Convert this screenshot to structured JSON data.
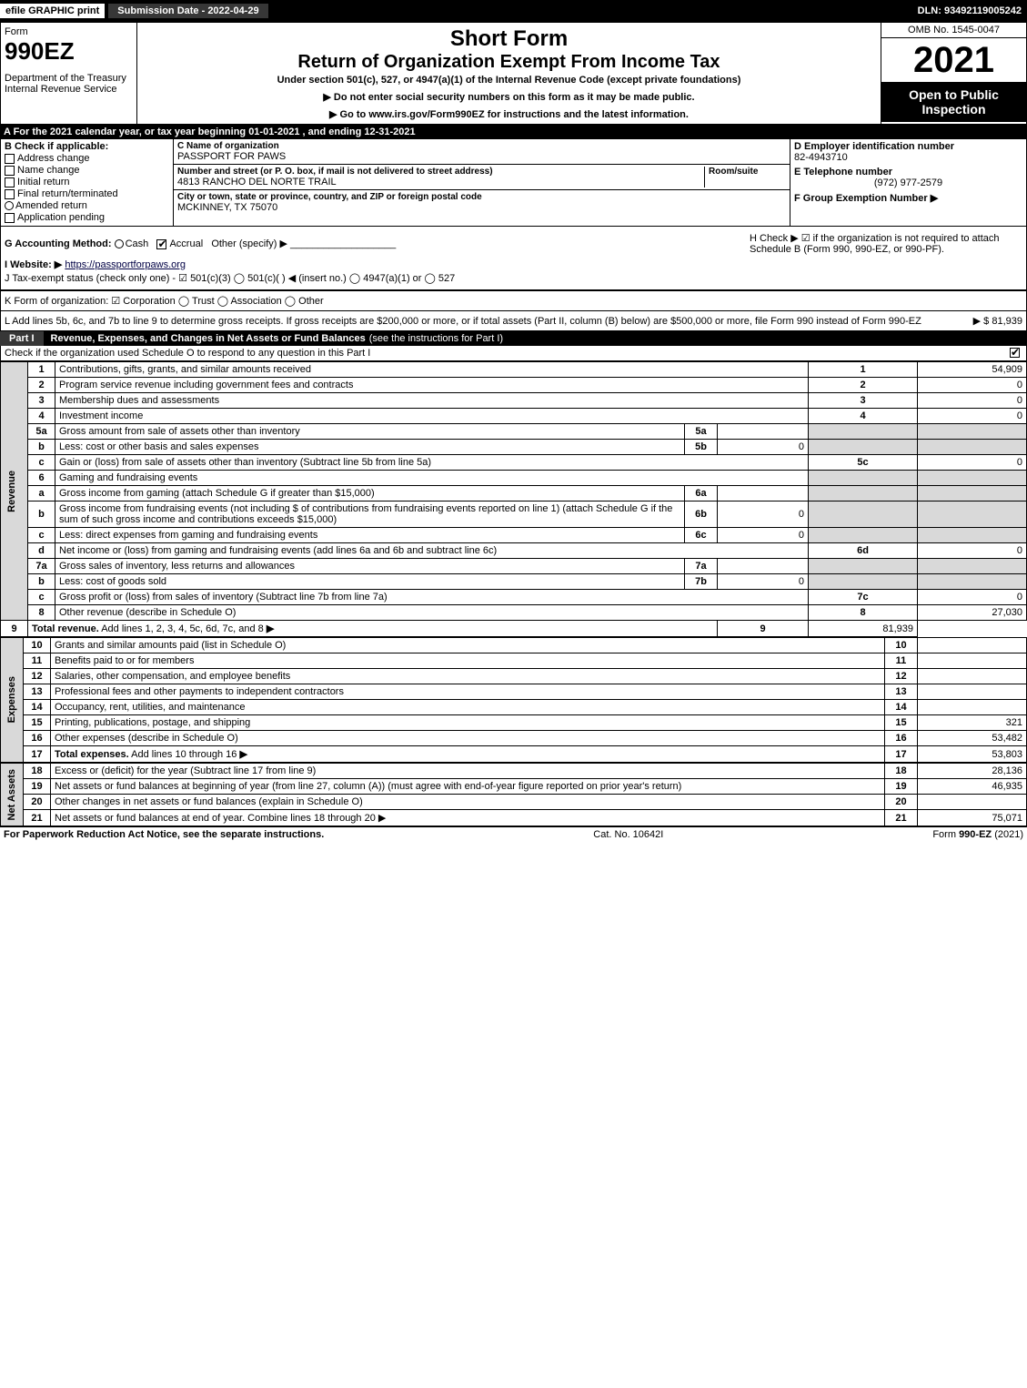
{
  "topbar": {
    "efile": "efile GRAPHIC print",
    "submission_label": "Submission Date - 2022-04-29",
    "dln": "DLN: 93492119005242"
  },
  "header": {
    "form_word": "Form",
    "form_num": "990EZ",
    "dept": "Department of the Treasury\nInternal Revenue Service",
    "short": "Short Form",
    "title": "Return of Organization Exempt From Income Tax",
    "under": "Under section 501(c), 527, or 4947(a)(1) of the Internal Revenue Code (except private foundations)",
    "note1": "▶ Do not enter social security numbers on this form as it may be made public.",
    "note2": "▶ Go to www.irs.gov/Form990EZ for instructions and the latest information.",
    "omb": "OMB No. 1545-0047",
    "year": "2021",
    "open": "Open to Public Inspection"
  },
  "line_a": "A  For the 2021 calendar year, or tax year beginning 01-01-2021 , and ending 12-31-2021",
  "section_b": {
    "label": "B  Check if applicable:",
    "items": [
      "Address change",
      "Name change",
      "Initial return",
      "Final return/terminated",
      "Amended return",
      "Application pending"
    ]
  },
  "section_c": {
    "name_label": "C Name of organization",
    "name": "PASSPORT FOR PAWS",
    "addr_label": "Number and street (or P. O. box, if mail is not delivered to street address)",
    "room_label": "Room/suite",
    "addr": "4813 RANCHO DEL NORTE TRAIL",
    "city_label": "City or town, state or province, country, and ZIP or foreign postal code",
    "city": "MCKINNEY, TX  75070"
  },
  "section_d": {
    "ein_label": "D Employer identification number",
    "ein": "82-4943710",
    "phone_label": "E Telephone number",
    "phone": "(972) 977-2579",
    "group_label": "F Group Exemption Number  ▶"
  },
  "g": {
    "label": "G Accounting Method:",
    "cash": "Cash",
    "accrual": "Accrual",
    "other": "Other (specify) ▶"
  },
  "h": {
    "text": "H  Check ▶ ☑ if the organization is not required to attach Schedule B (Form 990, 990-EZ, or 990-PF)."
  },
  "i": {
    "label": "I Website: ▶",
    "url": "https://passportforpaws.org"
  },
  "j": {
    "text": "J Tax-exempt status (check only one) - ☑ 501(c)(3)  ◯ 501(c)(   ) ◀ (insert no.)  ◯ 4947(a)(1) or  ◯ 527"
  },
  "k": {
    "text": "K Form of organization:  ☑ Corporation  ◯ Trust  ◯ Association  ◯ Other"
  },
  "l": {
    "text": "L Add lines 5b, 6c, and 7b to line 9 to determine gross receipts. If gross receipts are $200,000 or more, or if total assets (Part II, column (B) below) are $500,000 or more, file Form 990 instead of Form 990-EZ",
    "amount": "▶ $ 81,939"
  },
  "part1": {
    "label": "Part I",
    "title": "Revenue, Expenses, and Changes in Net Assets or Fund Balances",
    "extra": "(see the instructions for Part I)",
    "check_note": "Check if the organization used Schedule O to respond to any question in this Part I"
  },
  "side_labels": {
    "revenue": "Revenue",
    "expenses": "Expenses",
    "net": "Net Assets"
  },
  "rows": [
    {
      "n": "1",
      "desc": "Contributions, gifts, grants, and similar amounts received",
      "box": "1",
      "amt": "54,909"
    },
    {
      "n": "2",
      "desc": "Program service revenue including government fees and contracts",
      "box": "2",
      "amt": "0"
    },
    {
      "n": "3",
      "desc": "Membership dues and assessments",
      "box": "3",
      "amt": "0"
    },
    {
      "n": "4",
      "desc": "Investment income",
      "box": "4",
      "amt": "0"
    },
    {
      "n": "5a",
      "desc": "Gross amount from sale of assets other than inventory",
      "sub": "5a",
      "subamt": ""
    },
    {
      "n": "b",
      "desc": "Less: cost or other basis and sales expenses",
      "sub": "5b",
      "subamt": "0"
    },
    {
      "n": "c",
      "desc": "Gain or (loss) from sale of assets other than inventory (Subtract line 5b from line 5a)",
      "box": "5c",
      "amt": "0"
    },
    {
      "n": "6",
      "desc": "Gaming and fundraising events"
    },
    {
      "n": "a",
      "desc": "Gross income from gaming (attach Schedule G if greater than $15,000)",
      "sub": "6a",
      "subamt": ""
    },
    {
      "n": "b",
      "desc": "Gross income from fundraising events (not including $                  of contributions from fundraising events reported on line 1) (attach Schedule G if the sum of such gross income and contributions exceeds $15,000)",
      "sub": "6b",
      "subamt": "0"
    },
    {
      "n": "c",
      "desc": "Less: direct expenses from gaming and fundraising events",
      "sub": "6c",
      "subamt": "0"
    },
    {
      "n": "d",
      "desc": "Net income or (loss) from gaming and fundraising events (add lines 6a and 6b and subtract line 6c)",
      "box": "6d",
      "amt": "0"
    },
    {
      "n": "7a",
      "desc": "Gross sales of inventory, less returns and allowances",
      "sub": "7a",
      "subamt": ""
    },
    {
      "n": "b",
      "desc": "Less: cost of goods sold",
      "sub": "7b",
      "subamt": "0"
    },
    {
      "n": "c",
      "desc": "Gross profit or (loss) from sales of inventory (Subtract line 7b from line 7a)",
      "box": "7c",
      "amt": "0"
    },
    {
      "n": "8",
      "desc": "Other revenue (describe in Schedule O)",
      "box": "8",
      "amt": "27,030"
    },
    {
      "n": "9",
      "desc": "Total revenue. Add lines 1, 2, 3, 4, 5c, 6d, 7c, and 8",
      "box": "9",
      "amt": "81,939",
      "bold": true,
      "arrow": true
    }
  ],
  "exp_rows": [
    {
      "n": "10",
      "desc": "Grants and similar amounts paid (list in Schedule O)",
      "box": "10",
      "amt": ""
    },
    {
      "n": "11",
      "desc": "Benefits paid to or for members",
      "box": "11",
      "amt": ""
    },
    {
      "n": "12",
      "desc": "Salaries, other compensation, and employee benefits",
      "box": "12",
      "amt": ""
    },
    {
      "n": "13",
      "desc": "Professional fees and other payments to independent contractors",
      "box": "13",
      "amt": ""
    },
    {
      "n": "14",
      "desc": "Occupancy, rent, utilities, and maintenance",
      "box": "14",
      "amt": ""
    },
    {
      "n": "15",
      "desc": "Printing, publications, postage, and shipping",
      "box": "15",
      "amt": "321"
    },
    {
      "n": "16",
      "desc": "Other expenses (describe in Schedule O)",
      "box": "16",
      "amt": "53,482"
    },
    {
      "n": "17",
      "desc": "Total expenses. Add lines 10 through 16",
      "box": "17",
      "amt": "53,803",
      "bold": true,
      "arrow": true
    }
  ],
  "net_rows": [
    {
      "n": "18",
      "desc": "Excess or (deficit) for the year (Subtract line 17 from line 9)",
      "box": "18",
      "amt": "28,136"
    },
    {
      "n": "19",
      "desc": "Net assets or fund balances at beginning of year (from line 27, column (A)) (must agree with end-of-year figure reported on prior year's return)",
      "box": "19",
      "amt": "46,935"
    },
    {
      "n": "20",
      "desc": "Other changes in net assets or fund balances (explain in Schedule O)",
      "box": "20",
      "amt": ""
    },
    {
      "n": "21",
      "desc": "Net assets or fund balances at end of year. Combine lines 18 through 20",
      "box": "21",
      "amt": "75,071",
      "arrow": true
    }
  ],
  "footer": {
    "left": "For Paperwork Reduction Act Notice, see the separate instructions.",
    "mid": "Cat. No. 10642I",
    "right": "Form 990-EZ (2021)"
  }
}
